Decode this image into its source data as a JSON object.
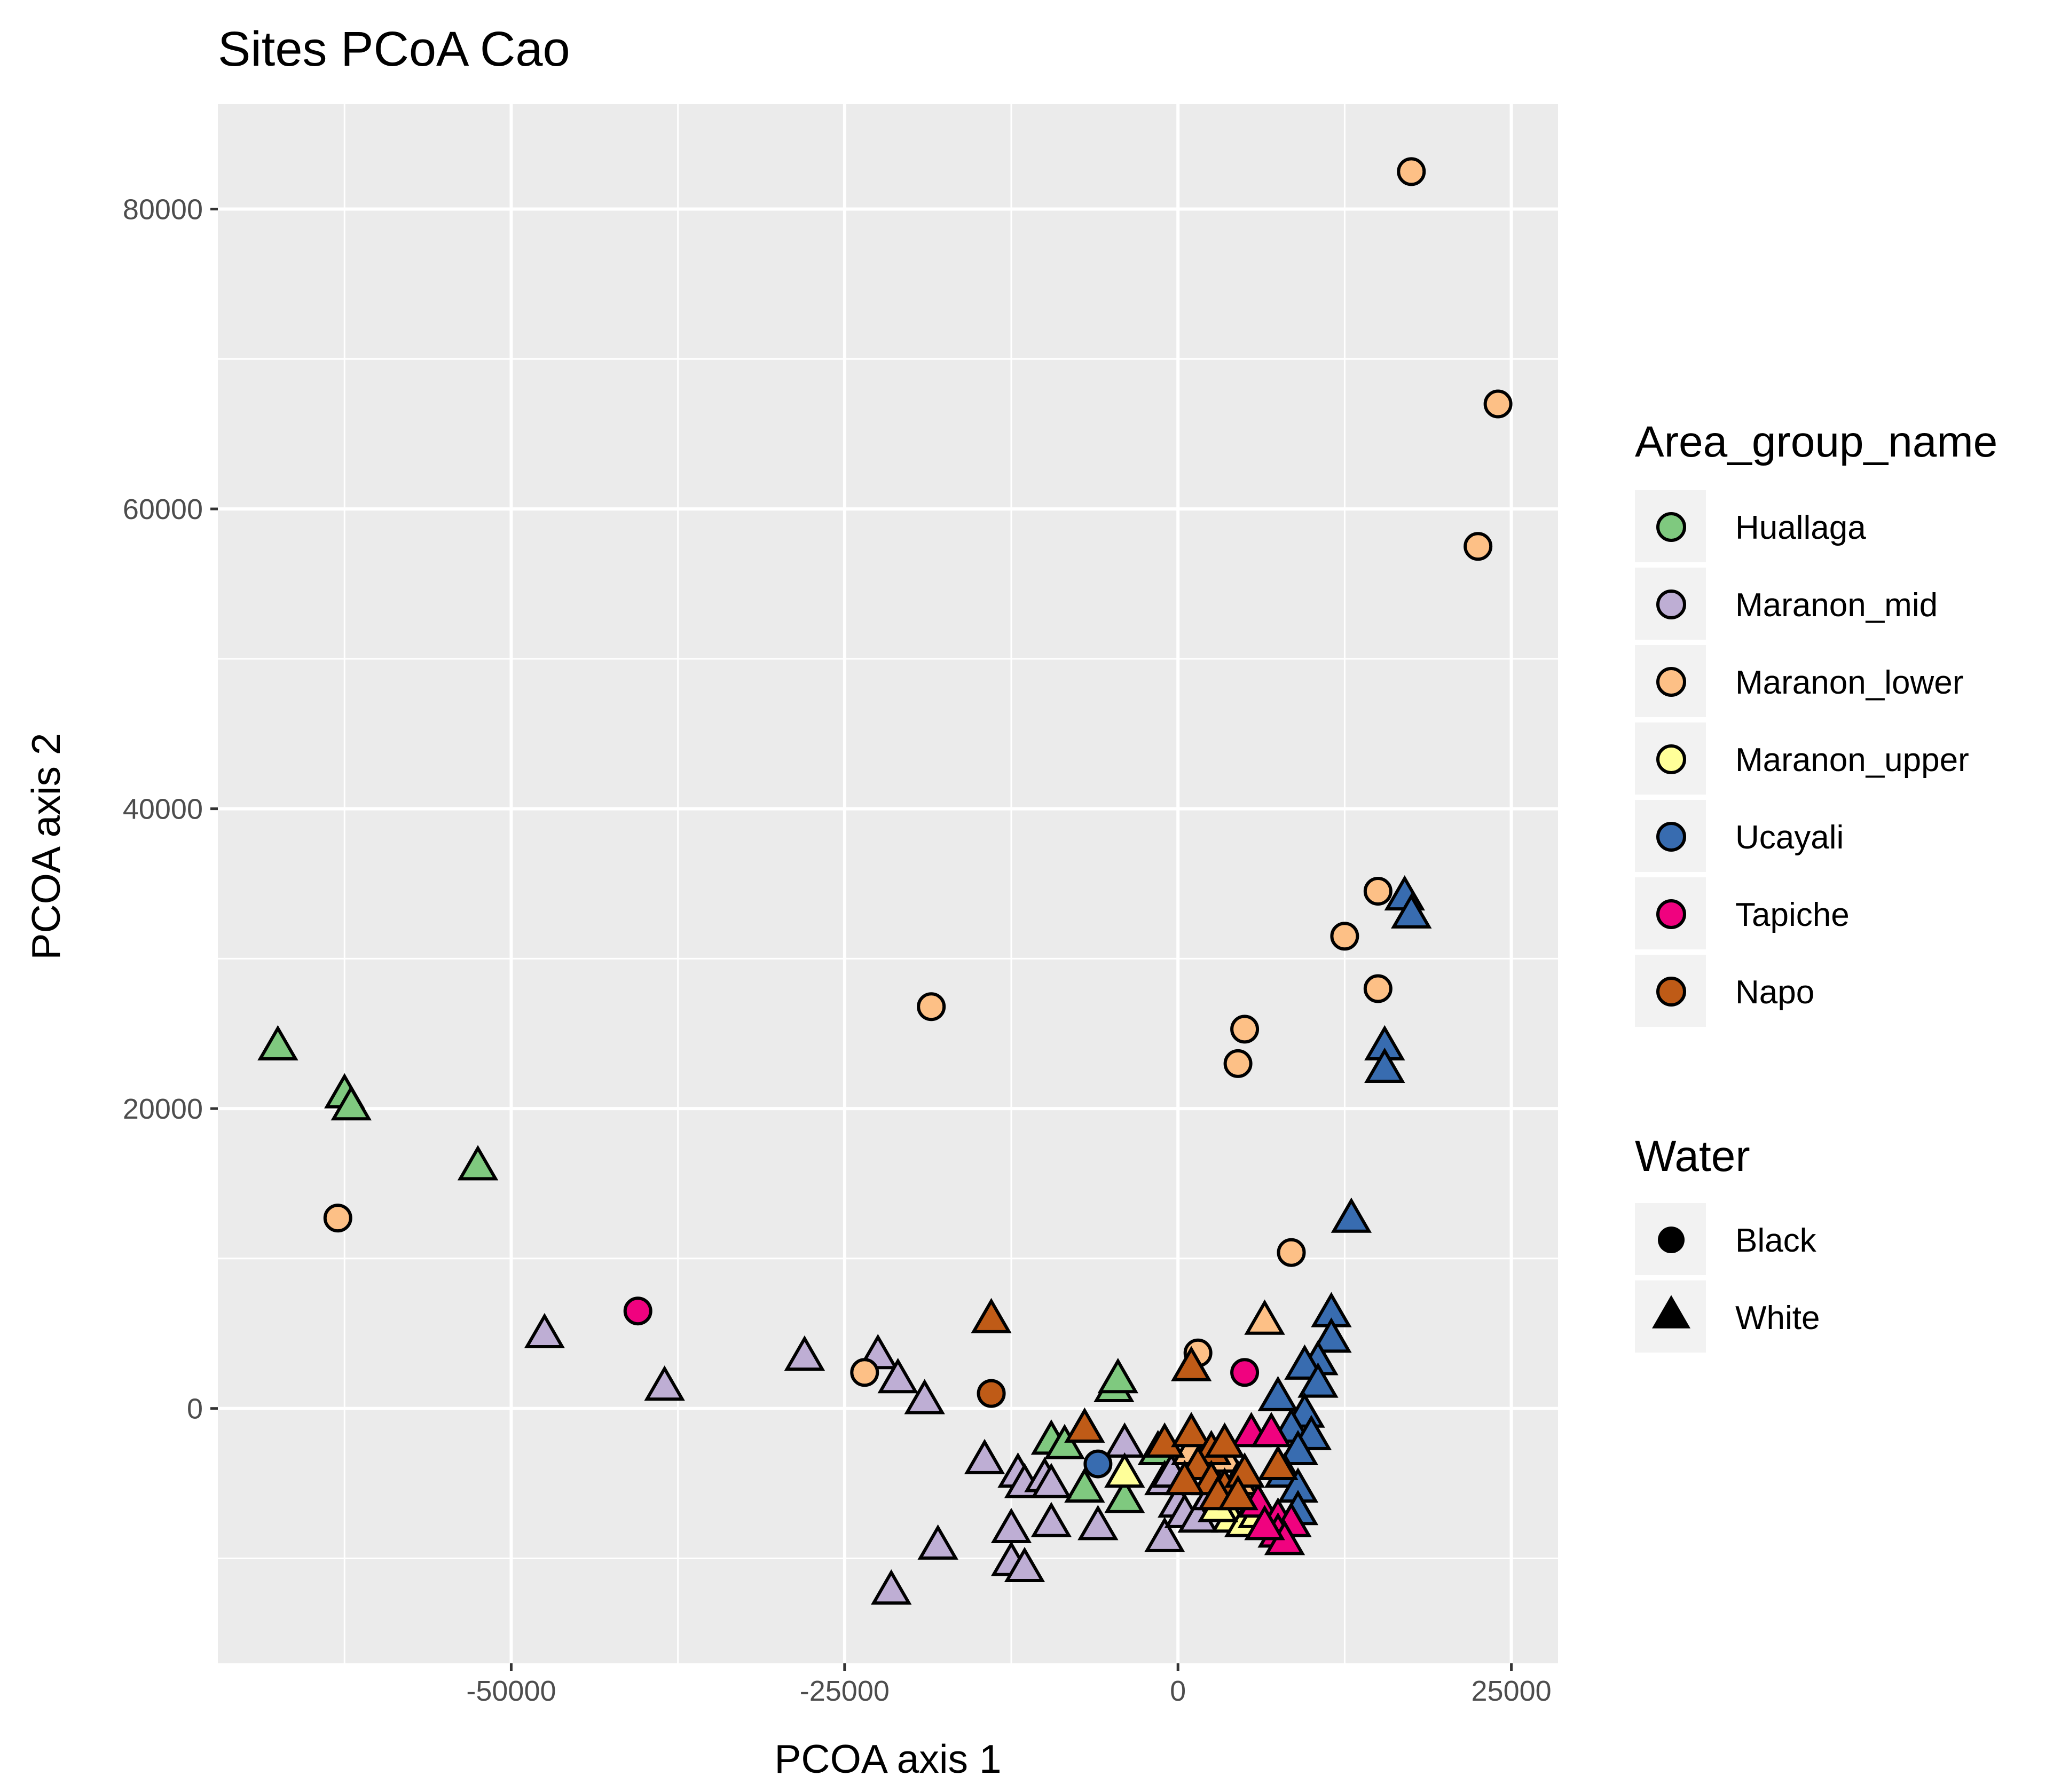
{
  "chart_data": {
    "type": "scatter",
    "title": "Sites PCoA Cao",
    "xlabel": "PCOA axis 1",
    "ylabel": "PCOA axis 2",
    "xlim": [
      -72000,
      28500
    ],
    "ylim": [
      -17000,
      87000
    ],
    "x_ticks": [
      {
        "value": -50000,
        "label": "-50000"
      },
      {
        "value": -25000,
        "label": "-25000"
      },
      {
        "value": 0,
        "label": "0"
      },
      {
        "value": 25000,
        "label": "25000"
      }
    ],
    "y_ticks": [
      {
        "value": 0,
        "label": "0"
      },
      {
        "value": 20000,
        "label": "20000"
      },
      {
        "value": 40000,
        "label": "40000"
      },
      {
        "value": 60000,
        "label": "60000"
      },
      {
        "value": 80000,
        "label": "80000"
      }
    ],
    "grid": true,
    "panel_background": "#ebebeb",
    "legend_placement": "right",
    "color_legend": {
      "title": "Area_group_name",
      "entries": [
        {
          "name": "Huallaga",
          "color": "#7fc97f"
        },
        {
          "name": "Maranon_mid",
          "color": "#beaed4"
        },
        {
          "name": "Maranon_lower",
          "color": "#fdc086"
        },
        {
          "name": "Maranon_upper",
          "color": "#ffff99"
        },
        {
          "name": "Ucayali",
          "color": "#386cb0"
        },
        {
          "name": "Tapiche",
          "color": "#f0027f"
        },
        {
          "name": "Napo",
          "color": "#bf5b17"
        }
      ]
    },
    "shape_legend": {
      "title": "Water",
      "entries": [
        {
          "name": "Black",
          "shape": "circle"
        },
        {
          "name": "White",
          "shape": "triangle"
        }
      ]
    },
    "series": [
      {
        "group": "Huallaga",
        "water": "White",
        "points": [
          [
            -67500,
            24000
          ],
          [
            -62500,
            20800
          ],
          [
            -62000,
            20000
          ],
          [
            -52500,
            16000
          ],
          [
            -4800,
            1200
          ],
          [
            -4500,
            1800
          ],
          [
            -9500,
            -2300
          ],
          [
            -8500,
            -2600
          ],
          [
            -7000,
            -5500
          ],
          [
            -4000,
            -6200
          ],
          [
            -1500,
            -3000
          ]
        ]
      },
      {
        "group": "Maranon_mid",
        "water": "White",
        "points": [
          [
            -47500,
            4800
          ],
          [
            -38500,
            1300
          ],
          [
            -28000,
            3300
          ],
          [
            -22500,
            3400
          ],
          [
            -21000,
            1800
          ],
          [
            -19000,
            400
          ],
          [
            -14500,
            -3600
          ],
          [
            -12000,
            -4500
          ],
          [
            -11500,
            -5200
          ],
          [
            -10000,
            -4800
          ],
          [
            -9500,
            -5200
          ],
          [
            -4000,
            -2500
          ],
          [
            -12500,
            -8200
          ],
          [
            -9500,
            -7800
          ],
          [
            -6000,
            -8000
          ],
          [
            -1000,
            -8800
          ],
          [
            -12500,
            -10400
          ],
          [
            -11500,
            -10800
          ],
          [
            -18000,
            -9300
          ],
          [
            -21500,
            -12300
          ],
          [
            -1000,
            -5000
          ],
          [
            0,
            -6500
          ],
          [
            500,
            -7200
          ],
          [
            1500,
            -7500
          ],
          [
            2500,
            -6000
          ],
          [
            -500,
            -4500
          ]
        ]
      },
      {
        "group": "Maranon_lower",
        "water": "Black",
        "points": [
          [
            17500,
            82500
          ],
          [
            24000,
            67000
          ],
          [
            22500,
            57500
          ],
          [
            -18500,
            26800
          ],
          [
            15000,
            34500
          ],
          [
            12500,
            31500
          ],
          [
            15000,
            28000
          ],
          [
            5000,
            25300
          ],
          [
            4500,
            23000
          ],
          [
            -63000,
            12700
          ],
          [
            8500,
            10400
          ],
          [
            -23500,
            2400
          ],
          [
            1500,
            3700
          ]
        ]
      },
      {
        "group": "Maranon_lower",
        "water": "White",
        "points": [
          [
            6500,
            5700
          ],
          [
            1000,
            -3000
          ],
          [
            2000,
            -4000
          ],
          [
            3500,
            -3500
          ],
          [
            4500,
            -5000
          ]
        ]
      },
      {
        "group": "Maranon_upper",
        "water": "White",
        "points": [
          [
            -4000,
            -4500
          ],
          [
            4000,
            -7500
          ],
          [
            5000,
            -7800
          ],
          [
            6000,
            -7200
          ],
          [
            3000,
            -6800
          ]
        ]
      },
      {
        "group": "Ucayali",
        "water": "Black",
        "points": [
          [
            -6000,
            -3700
          ]
        ]
      },
      {
        "group": "Ucayali",
        "water": "White",
        "points": [
          [
            17000,
            34000
          ],
          [
            17500,
            32800
          ],
          [
            15500,
            24000
          ],
          [
            15500,
            22500
          ],
          [
            13000,
            12500
          ],
          [
            11500,
            6200
          ],
          [
            11500,
            4500
          ],
          [
            10500,
            3000
          ],
          [
            9500,
            2700
          ],
          [
            10500,
            1500
          ],
          [
            7500,
            600
          ],
          [
            9500,
            -500
          ],
          [
            8500,
            -1500
          ],
          [
            10000,
            -2000
          ],
          [
            9000,
            -3000
          ],
          [
            8000,
            -4500
          ],
          [
            9000,
            -5500
          ],
          [
            9000,
            -7000
          ]
        ]
      },
      {
        "group": "Tapiche",
        "water": "Black",
        "points": [
          [
            -40500,
            6500
          ],
          [
            5000,
            2400
          ]
        ]
      },
      {
        "group": "Tapiche",
        "water": "White",
        "points": [
          [
            5500,
            -1800
          ],
          [
            7000,
            -1800
          ],
          [
            6000,
            -6500
          ],
          [
            7500,
            -7500
          ],
          [
            8500,
            -7800
          ],
          [
            7500,
            -8500
          ],
          [
            8000,
            -9000
          ],
          [
            6500,
            -8000
          ]
        ]
      },
      {
        "group": "Napo",
        "water": "Black",
        "points": [
          [
            -14000,
            1000
          ]
        ]
      },
      {
        "group": "Napo",
        "water": "White",
        "points": [
          [
            -14000,
            5800
          ],
          [
            1000,
            2600
          ],
          [
            -7000,
            -1500
          ],
          [
            -1000,
            -2500
          ],
          [
            1000,
            -1800
          ],
          [
            2500,
            -3000
          ],
          [
            3500,
            -2500
          ],
          [
            1500,
            -4000
          ],
          [
            2500,
            -5000
          ],
          [
            3500,
            -5500
          ],
          [
            5000,
            -4500
          ],
          [
            7500,
            -4000
          ],
          [
            500,
            -5000
          ],
          [
            3000,
            -6000
          ],
          [
            4500,
            -6000
          ]
        ]
      }
    ]
  }
}
